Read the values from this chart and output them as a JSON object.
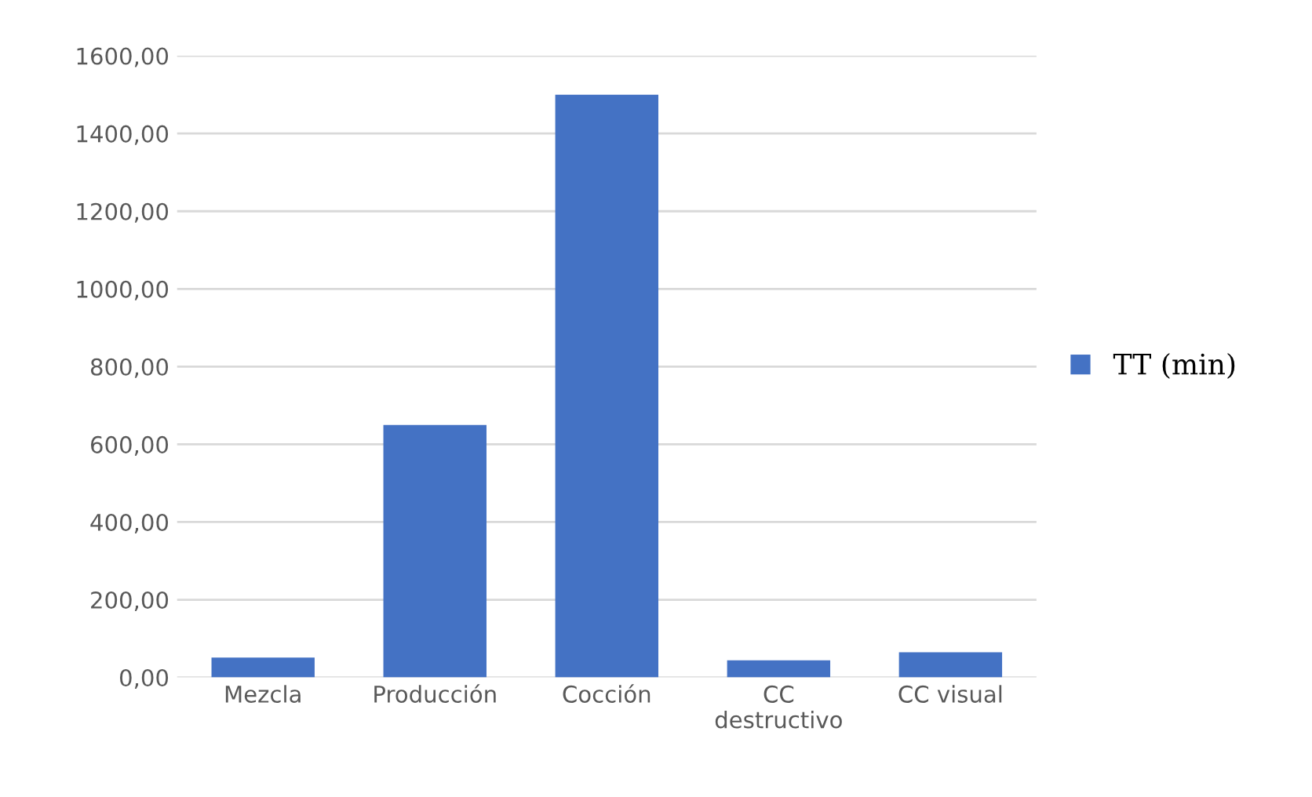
{
  "chart_data": {
    "type": "bar",
    "categories": [
      "Mezcla",
      "Producción",
      "Cocción",
      "CC\ndestructivo",
      "CC visual"
    ],
    "series": [
      {
        "name": "TT (min)",
        "color": "#4472c4",
        "values": [
          51,
          650,
          1500,
          44,
          65
        ]
      }
    ],
    "ylim": [
      0,
      1600
    ],
    "yticks": [
      {
        "value": 0,
        "label": "0,00"
      },
      {
        "value": 200,
        "label": "200,00"
      },
      {
        "value": 400,
        "label": "400,00"
      },
      {
        "value": 600,
        "label": "600,00"
      },
      {
        "value": 800,
        "label": "800,00"
      },
      {
        "value": 1000,
        "label": "1000,00"
      },
      {
        "value": 1200,
        "label": "1200,00"
      },
      {
        "value": 1400,
        "label": "1400,00"
      },
      {
        "value": 1600,
        "label": "1600,00"
      }
    ],
    "grid": "y",
    "legend": "right"
  }
}
